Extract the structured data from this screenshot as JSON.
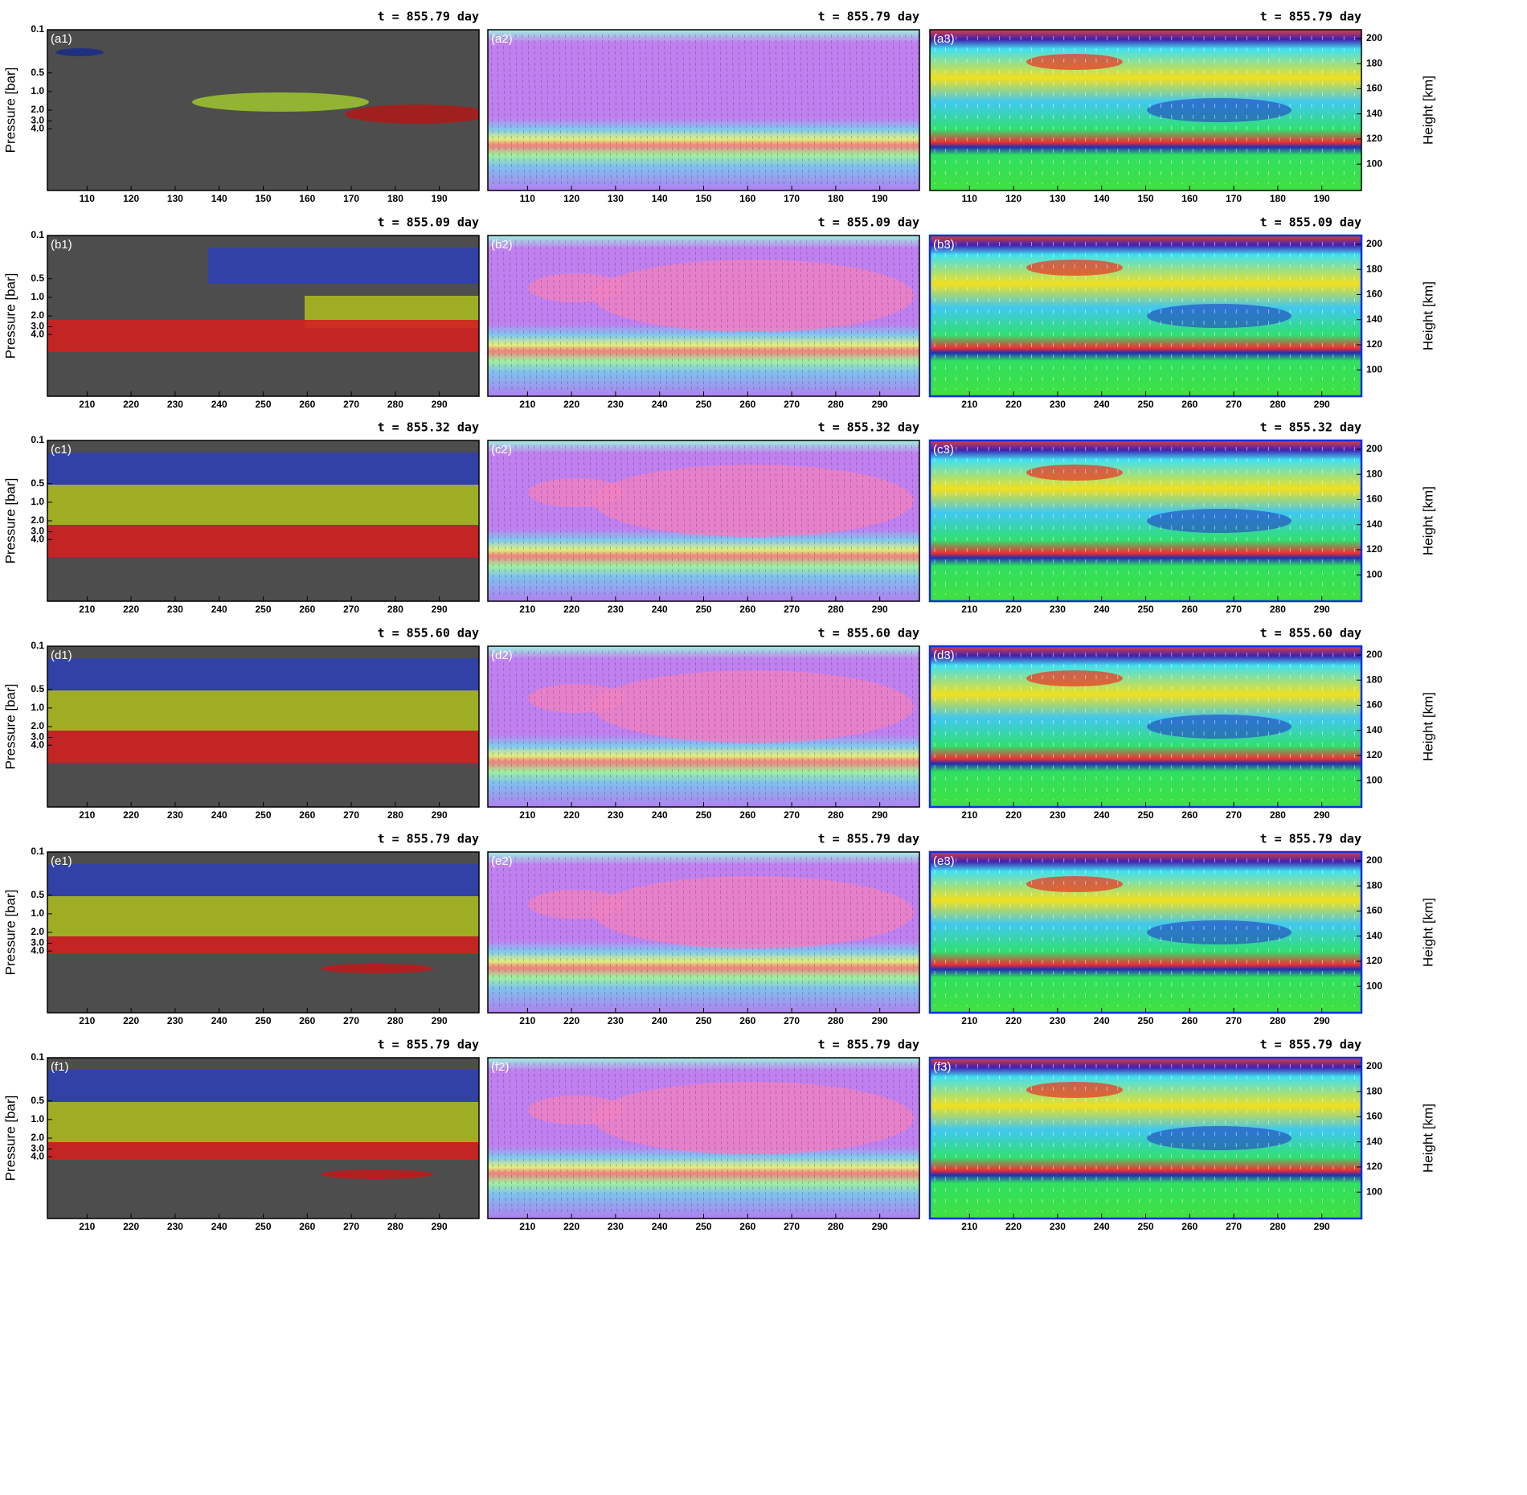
{
  "figure": {
    "left_axis_label": "Pressure [bar]",
    "right_axis_label": "Height [km]",
    "pressure_lim": [
      0.1,
      40
    ],
    "pressure_ticks": [
      {
        "value": 0.1,
        "label": "0.1"
      },
      {
        "value": 0.5,
        "label": "0.5"
      },
      {
        "value": 1.0,
        "label": "1.0"
      },
      {
        "value": 2.0,
        "label": "2.0"
      },
      {
        "value": 3.0,
        "label": "3.0"
      },
      {
        "value": 4.0,
        "label": "4.0"
      }
    ],
    "height_lim": [
      79,
      207
    ],
    "height_ticks": [
      100,
      120,
      140,
      160,
      180,
      200
    ],
    "rows": [
      {
        "time": "t = 855.79 day",
        "xlim": [
          101,
          199
        ],
        "xticks": [
          110,
          120,
          130,
          140,
          150,
          160,
          170,
          180,
          190
        ],
        "panels": [
          "(a1)",
          "(a2)",
          "(a3)"
        ]
      },
      {
        "time": "t = 855.09 day",
        "xlim": [
          201,
          299
        ],
        "xticks": [
          210,
          220,
          230,
          240,
          250,
          260,
          270,
          280,
          290
        ],
        "panels": [
          "(b1)",
          "(b2)",
          "(b3)"
        ]
      },
      {
        "time": "t = 855.32 day",
        "xlim": [
          201,
          299
        ],
        "xticks": [
          210,
          220,
          230,
          240,
          250,
          260,
          270,
          280,
          290
        ],
        "panels": [
          "(c1)",
          "(c2)",
          "(c3)"
        ]
      },
      {
        "time": "t = 855.60 day",
        "xlim": [
          201,
          299
        ],
        "xticks": [
          210,
          220,
          230,
          240,
          250,
          260,
          270,
          280,
          290
        ],
        "panels": [
          "(d1)",
          "(d2)",
          "(d3)"
        ]
      },
      {
        "time": "t = 855.79 day",
        "xlim": [
          201,
          299
        ],
        "xticks": [
          210,
          220,
          230,
          240,
          250,
          260,
          270,
          280,
          290
        ],
        "panels": [
          "(e1)",
          "(e2)",
          "(e3)"
        ]
      },
      {
        "time": "t = 855.79 day",
        "xlim": [
          201,
          299
        ],
        "xticks": [
          210,
          220,
          230,
          240,
          250,
          260,
          270,
          280,
          290
        ],
        "panels": [
          "(f1)",
          "(f2)",
          "(f3)"
        ]
      }
    ]
  }
}
